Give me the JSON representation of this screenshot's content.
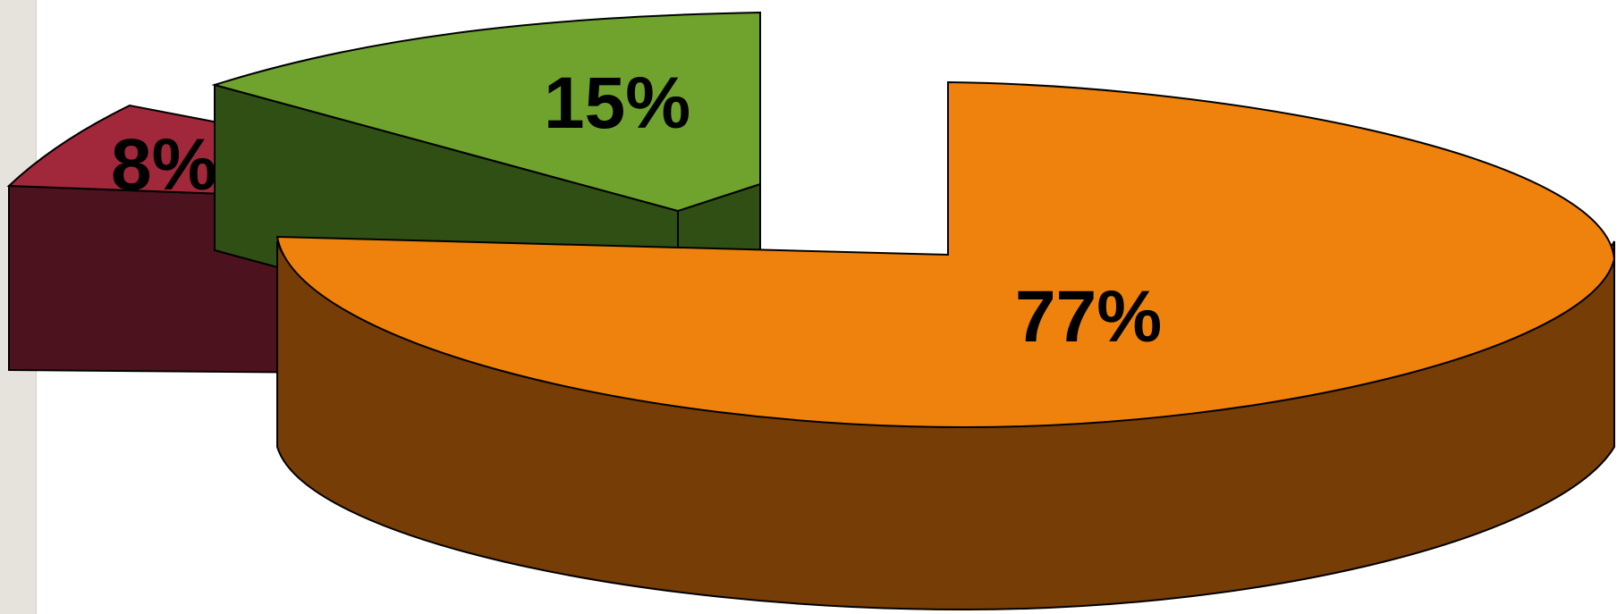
{
  "chart_data": {
    "type": "pie",
    "style": "3d-exploded",
    "slices": [
      {
        "label": "77%",
        "value": 77,
        "top_color": "#ee820c",
        "side_color": "#763d06"
      },
      {
        "label": "15%",
        "value": 15,
        "top_color": "#6fa32d",
        "side_color": "#2f4f14"
      },
      {
        "label": "8%",
        "value": 8,
        "top_color": "#a1283a",
        "side_color": "#4c121e"
      }
    ],
    "legend": false,
    "title": ""
  }
}
